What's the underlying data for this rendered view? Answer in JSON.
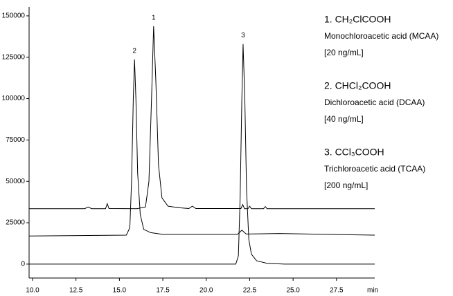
{
  "chart_data": {
    "type": "line",
    "xlim": [
      9.8,
      29.7
    ],
    "ylim": [
      -8400,
      155400
    ],
    "xticks": [
      {
        "value": 10,
        "label": "10.0"
      },
      {
        "value": 12.5,
        "label": "12.5"
      },
      {
        "value": 15,
        "label": "15.0"
      },
      {
        "value": 17.5,
        "label": "17.5"
      },
      {
        "value": 20,
        "label": "20.0"
      },
      {
        "value": 22.5,
        "label": "22.5"
      },
      {
        "value": 25,
        "label": "25.0"
      },
      {
        "value": 27.5,
        "label": "27.5"
      }
    ],
    "x_unit": "min",
    "yticks": [
      0,
      25000,
      50000,
      75000,
      100000,
      125000,
      150000
    ],
    "color": "#000000",
    "series": [
      {
        "x": [
          9.8,
          13.0,
          13.2,
          13.4,
          14.2,
          14.3,
          14.4,
          16.0,
          16.5,
          16.7,
          16.85,
          16.97,
          17.1,
          17.25,
          17.45,
          17.8,
          18.5,
          19.0,
          19.2,
          19.4,
          22.0,
          22.1,
          22.2,
          22.4,
          22.5,
          22.6,
          23.3,
          23.4,
          23.5,
          29.7
        ],
        "values": [
          33500,
          33500,
          34500,
          33500,
          33500,
          36500,
          33600,
          33500,
          34500,
          50000,
          100000,
          143700,
          110000,
          60000,
          40000,
          35000,
          34000,
          33600,
          35000,
          33600,
          33600,
          36000,
          33500,
          33500,
          35000,
          33500,
          33500,
          34800,
          33500,
          33500
        ]
      },
      {
        "x": [
          9.8,
          15.4,
          15.6,
          15.7,
          15.8,
          15.87,
          15.95,
          16.05,
          16.2,
          16.4,
          16.8,
          17.5,
          21.8,
          22.05,
          22.3,
          24.2,
          29.7
        ],
        "values": [
          17000,
          17500,
          22000,
          50000,
          100000,
          123700,
          100000,
          55000,
          30000,
          21000,
          19000,
          18000,
          18000,
          20500,
          18200,
          18500,
          17500
        ]
      },
      {
        "x": [
          9.8,
          21.7,
          21.85,
          21.95,
          22.05,
          22.12,
          22.22,
          22.32,
          22.45,
          22.6,
          22.9,
          23.5,
          24.5,
          29.7
        ],
        "values": [
          0,
          0,
          5000,
          40000,
          100000,
          133000,
          100000,
          45000,
          15000,
          6000,
          2000,
          500,
          0,
          0
        ]
      }
    ],
    "annotations": [
      {
        "text": "1",
        "x": 16.97,
        "y": 143700
      },
      {
        "text": "2",
        "x": 15.87,
        "y": 123700
      },
      {
        "text": "3",
        "x": 22.12,
        "y": 133000
      }
    ],
    "compounds": [
      {
        "formula": "1. CH₂ClCOOH",
        "name": "Monochloroacetic acid (MCAA)",
        "concentration": "[20 ng/mL]"
      },
      {
        "formula": "2. CHCl₂COOH",
        "name": "Dichloroacetic acid (DCAA)",
        "concentration": "[40 ng/mL]"
      },
      {
        "formula": "3. CCl₃COOH",
        "name": "Trichloroacetic acid (TCAA)",
        "concentration": "[200 ng/mL]"
      }
    ]
  }
}
